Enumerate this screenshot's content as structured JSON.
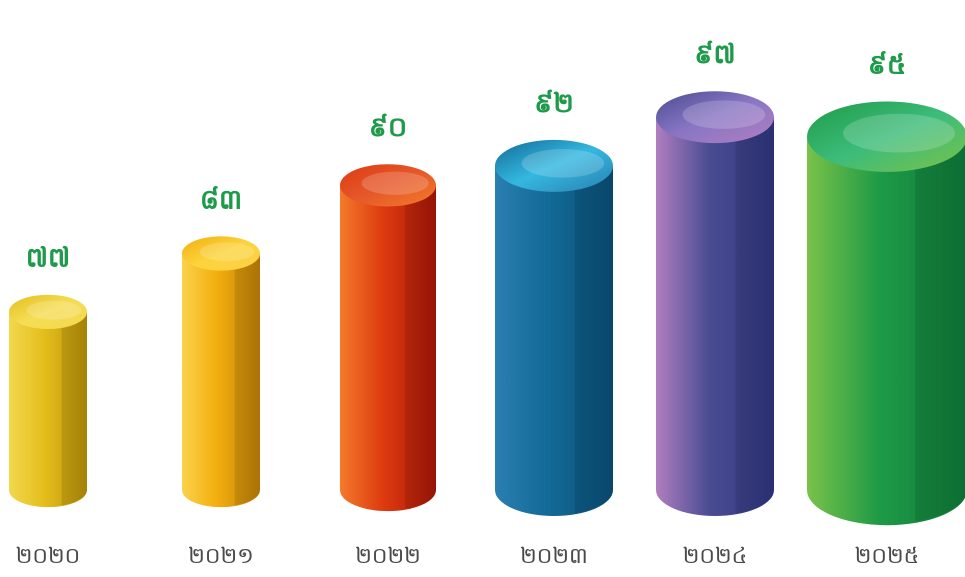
{
  "chart_data": {
    "type": "bar",
    "style": "3d-cylinder",
    "title": "",
    "xlabel": "",
    "ylabel": "",
    "categories": [
      "២០២០",
      "២០២១",
      "២០២២",
      "២០២៣",
      "២០២៤",
      "២០២៥"
    ],
    "values": [
      77,
      83,
      90,
      92,
      97,
      95
    ],
    "value_labels": [
      "៧៧",
      "៨៣",
      "៩០",
      "៩២",
      "៩៧",
      "៩៥"
    ],
    "ylim": [
      70,
      100
    ],
    "grid": false,
    "legend": "none",
    "value_label_color": "#1e9a4a",
    "category_label_color": "#4a4a4a",
    "bar_colors": [
      {
        "light": "#f2d84e",
        "mid": "#e4be1c",
        "dark": "#b89008",
        "top": "#f5dd55"
      },
      {
        "light": "#fbd24a",
        "mid": "#f2ae0e",
        "dark": "#c07f06",
        "top": "#fcd33c"
      },
      {
        "light": "#f47a2a",
        "mid": "#dd3a10",
        "dark": "#a81606",
        "top": "#e5582a"
      },
      {
        "light": "#2a7fb0",
        "mid": "#126a96",
        "dark": "#0b4f78",
        "top": "#34b8e0"
      },
      {
        "light": "#b07ec0",
        "mid": "#4a4c92",
        "dark": "#2e3680",
        "top": "#8a76c4"
      },
      {
        "light": "#7ac24a",
        "mid": "#1e9a46",
        "dark": "#0e7a3a",
        "top": "#3cbc7a"
      }
    ]
  }
}
